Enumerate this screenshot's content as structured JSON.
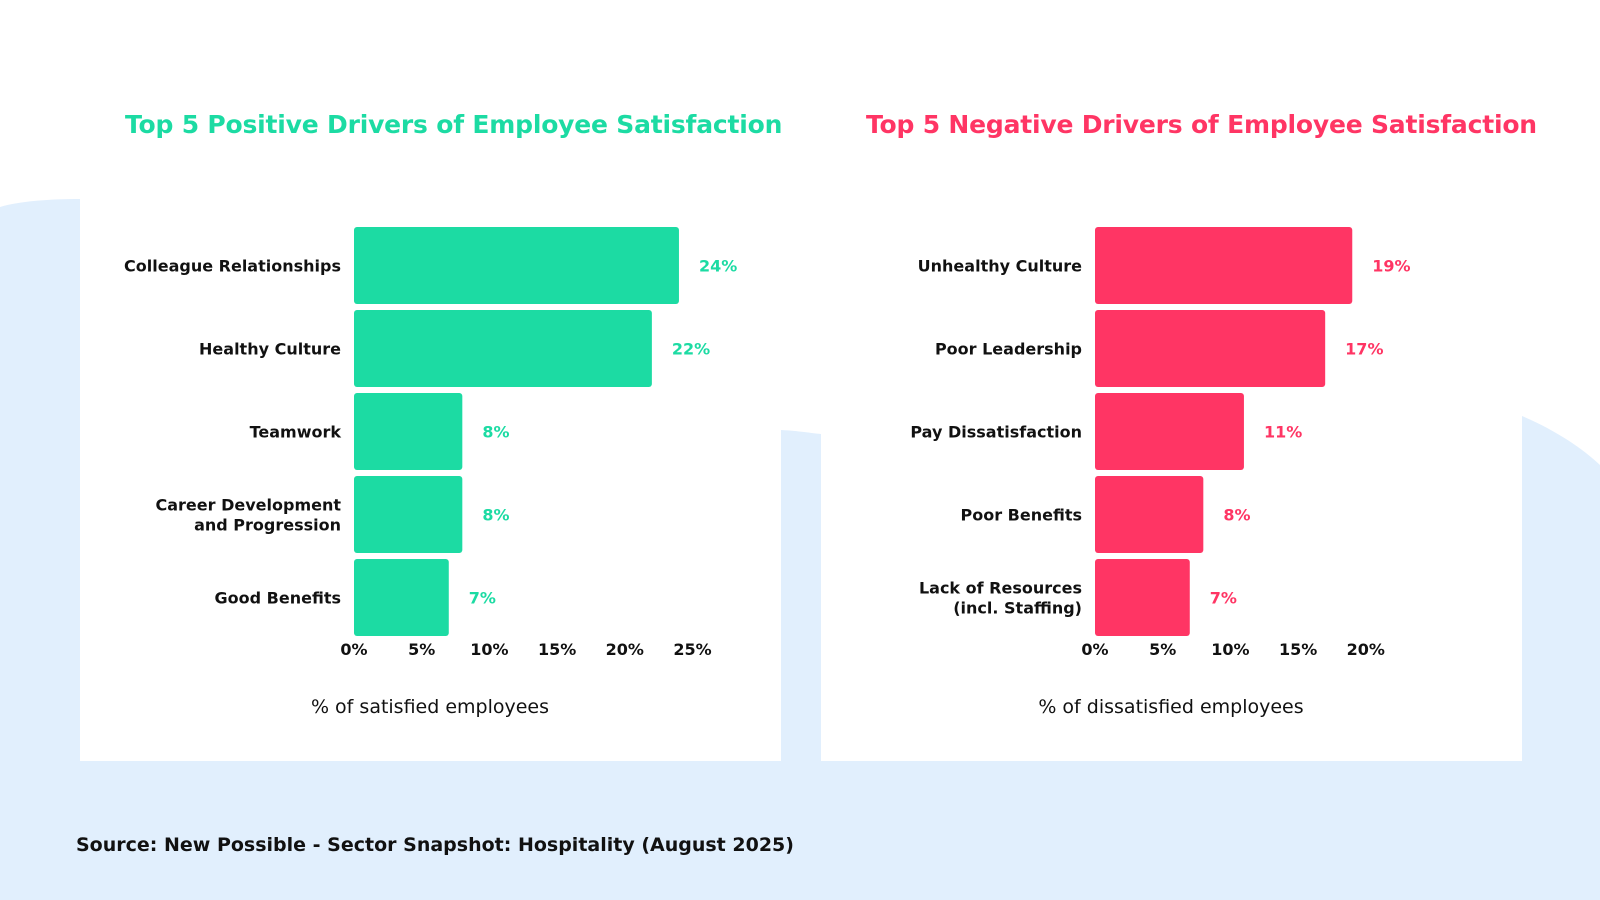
{
  "source_text": "Source: New Possible - Sector Snapshot: Hospitality (August 2025)",
  "colors": {
    "positive": "#1cdba3",
    "negative": "#ff3564",
    "background_shape": "#e1effd"
  },
  "chart_data": [
    {
      "type": "bar",
      "orientation": "horizontal",
      "title": "Top 5 Positive Drivers of Employee Satisfaction",
      "xlabel": "% of satisfied employees",
      "ylabel": "",
      "categories": [
        [
          "Colleague Relationships"
        ],
        [
          "Healthy Culture"
        ],
        [
          "Teamwork"
        ],
        [
          "Career Development",
          "and Progression"
        ],
        [
          "Good Benefits"
        ]
      ],
      "values": [
        24,
        22,
        8,
        8,
        7
      ],
      "value_labels": [
        "24%",
        "22%",
        "8%",
        "8%",
        "7%"
      ],
      "xlim": [
        0,
        25
      ],
      "xticks": [
        0,
        5,
        10,
        15,
        20,
        25
      ],
      "xtick_labels": [
        "0%",
        "5%",
        "10%",
        "15%",
        "20%",
        "25%"
      ],
      "grid": false,
      "color": "#1cdba3"
    },
    {
      "type": "bar",
      "orientation": "horizontal",
      "title": "Top 5 Negative Drivers of Employee Satisfaction",
      "xlabel": "% of dissatisfied employees",
      "ylabel": "",
      "categories": [
        [
          "Unhealthy Culture"
        ],
        [
          "Poor Leadership"
        ],
        [
          "Pay Dissatisfaction"
        ],
        [
          "Poor Benefits"
        ],
        [
          "Lack of Resources",
          "(incl. Staffing)"
        ]
      ],
      "values": [
        19,
        17,
        11,
        8,
        7
      ],
      "value_labels": [
        "19%",
        "17%",
        "11%",
        "8%",
        "7%"
      ],
      "xlim": [
        0,
        20
      ],
      "xticks": [
        0,
        5,
        10,
        15,
        20
      ],
      "xtick_labels": [
        "0%",
        "5%",
        "10%",
        "15%",
        "20%"
      ],
      "grid": false,
      "color": "#ff3564"
    }
  ]
}
